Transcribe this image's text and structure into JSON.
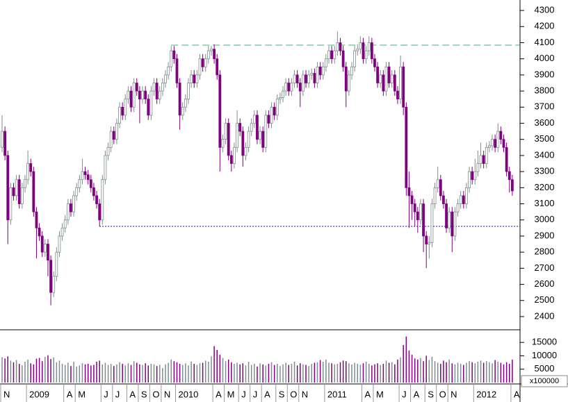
{
  "chart_data": {
    "type": "candlestick",
    "ohlc": [
      [
        3450,
        3650,
        3420,
        3550
      ],
      [
        3550,
        3580,
        3370,
        3400
      ],
      [
        3400,
        3430,
        2850,
        3000
      ],
      [
        3000,
        3230,
        2970,
        3200
      ],
      [
        3200,
        3230,
        3120,
        3150
      ],
      [
        3150,
        3280,
        3120,
        3250
      ],
      [
        3250,
        3280,
        3070,
        3100
      ],
      [
        3100,
        3230,
        3070,
        3200
      ],
      [
        3200,
        3280,
        3170,
        3250
      ],
      [
        3250,
        3430,
        3220,
        3350
      ],
      [
        3350,
        3380,
        3270,
        3300
      ],
      [
        3300,
        3330,
        3020,
        3050
      ],
      [
        3050,
        3080,
        2760,
        2950
      ],
      [
        2950,
        2980,
        2870,
        2900
      ],
      [
        2900,
        2930,
        2770,
        2800
      ],
      [
        2800,
        2880,
        2770,
        2850
      ],
      [
        2850,
        2880,
        2650,
        2750
      ],
      [
        2750,
        2780,
        2470,
        2550
      ],
      [
        2550,
        2680,
        2520,
        2650
      ],
      [
        2650,
        2830,
        2620,
        2800
      ],
      [
        2800,
        2930,
        2770,
        2900
      ],
      [
        2900,
        2980,
        2870,
        2950
      ],
      [
        2950,
        3030,
        2920,
        3000
      ],
      [
        3000,
        3130,
        2970,
        3100
      ],
      [
        3100,
        3130,
        3020,
        3050
      ],
      [
        3050,
        3180,
        3020,
        3150
      ],
      [
        3150,
        3230,
        3120,
        3200
      ],
      [
        3200,
        3280,
        3170,
        3250
      ],
      [
        3250,
        3380,
        3220,
        3300
      ],
      [
        3300,
        3330,
        3250,
        3280
      ],
      [
        3280,
        3310,
        3220,
        3250
      ],
      [
        3250,
        3280,
        3170,
        3200
      ],
      [
        3200,
        3230,
        3120,
        3150
      ],
      [
        3150,
        3180,
        3070,
        3100
      ],
      [
        3100,
        3130,
        2960,
        3000
      ],
      [
        3000,
        3280,
        2970,
        3250
      ],
      [
        3250,
        3430,
        3220,
        3400
      ],
      [
        3400,
        3480,
        3370,
        3450
      ],
      [
        3450,
        3580,
        3420,
        3550
      ],
      [
        3550,
        3580,
        3470,
        3500
      ],
      [
        3500,
        3630,
        3470,
        3600
      ],
      [
        3600,
        3730,
        3570,
        3700
      ],
      [
        3700,
        3730,
        3620,
        3650
      ],
      [
        3650,
        3780,
        3620,
        3750
      ],
      [
        3750,
        3830,
        3720,
        3800
      ],
      [
        3800,
        3830,
        3670,
        3700
      ],
      [
        3700,
        3880,
        3670,
        3850
      ],
      [
        3850,
        3880,
        3770,
        3800
      ],
      [
        3800,
        3830,
        3600,
        3750
      ],
      [
        3750,
        3830,
        3720,
        3800
      ],
      [
        3800,
        3830,
        3720,
        3750
      ],
      [
        3750,
        3780,
        3620,
        3650
      ],
      [
        3650,
        3830,
        3620,
        3800
      ],
      [
        3800,
        3880,
        3770,
        3850
      ],
      [
        3850,
        3880,
        3720,
        3750
      ],
      [
        3750,
        3830,
        3720,
        3800
      ],
      [
        3800,
        3880,
        3770,
        3850
      ],
      [
        3850,
        3930,
        3820,
        3900
      ],
      [
        3900,
        3980,
        3870,
        3950
      ],
      [
        3950,
        4080,
        3920,
        4050
      ],
      [
        4050,
        4080,
        3970,
        4000
      ],
      [
        4000,
        4030,
        3820,
        3850
      ],
      [
        3850,
        3880,
        3560,
        3650
      ],
      [
        3650,
        3730,
        3620,
        3700
      ],
      [
        3700,
        3780,
        3670,
        3750
      ],
      [
        3750,
        3880,
        3720,
        3850
      ],
      [
        3850,
        3930,
        3820,
        3900
      ],
      [
        3900,
        3930,
        3820,
        3850
      ],
      [
        3850,
        3930,
        3820,
        3900
      ],
      [
        3900,
        4030,
        3870,
        4000
      ],
      [
        4000,
        4030,
        3920,
        3950
      ],
      [
        3950,
        4030,
        3920,
        4000
      ],
      [
        4000,
        4080,
        3970,
        4050
      ],
      [
        4050,
        4080,
        4020,
        4060
      ],
      [
        4060,
        4090,
        3970,
        4000
      ],
      [
        4000,
        4030,
        3870,
        3900
      ],
      [
        3900,
        3930,
        3300,
        3450
      ],
      [
        3450,
        3530,
        3420,
        3500
      ],
      [
        3500,
        3630,
        3470,
        3600
      ],
      [
        3600,
        3630,
        3370,
        3400
      ],
      [
        3400,
        3430,
        3300,
        3350
      ],
      [
        3350,
        3480,
        3320,
        3450
      ],
      [
        3450,
        3680,
        3420,
        3600
      ],
      [
        3600,
        3630,
        3520,
        3550
      ],
      [
        3550,
        3580,
        3330,
        3400
      ],
      [
        3400,
        3480,
        3370,
        3450
      ],
      [
        3450,
        3580,
        3420,
        3550
      ],
      [
        3550,
        3630,
        3520,
        3600
      ],
      [
        3600,
        3680,
        3570,
        3650
      ],
      [
        3650,
        3680,
        3470,
        3500
      ],
      [
        3500,
        3580,
        3470,
        3550
      ],
      [
        3550,
        3580,
        3420,
        3450
      ],
      [
        3450,
        3680,
        3420,
        3650
      ],
      [
        3650,
        3680,
        3570,
        3600
      ],
      [
        3600,
        3730,
        3570,
        3700
      ],
      [
        3700,
        3730,
        3620,
        3650
      ],
      [
        3650,
        3780,
        3620,
        3750
      ],
      [
        3750,
        3790,
        3720,
        3760
      ],
      [
        3760,
        3830,
        3730,
        3800
      ],
      [
        3800,
        3880,
        3770,
        3850
      ],
      [
        3850,
        3880,
        3770,
        3800
      ],
      [
        3800,
        3880,
        3770,
        3850
      ],
      [
        3850,
        3930,
        3820,
        3900
      ],
      [
        3900,
        3930,
        3820,
        3850
      ],
      [
        3850,
        3880,
        3700,
        3800
      ],
      [
        3800,
        3930,
        3770,
        3900
      ],
      [
        3900,
        3930,
        3820,
        3850
      ],
      [
        3850,
        3930,
        3820,
        3900
      ],
      [
        3900,
        3940,
        3870,
        3910
      ],
      [
        3910,
        3940,
        3820,
        3850
      ],
      [
        3850,
        3980,
        3820,
        3950
      ],
      [
        3950,
        3980,
        3870,
        3900
      ],
      [
        3900,
        3980,
        3870,
        3950
      ],
      [
        3950,
        4030,
        3920,
        4000
      ],
      [
        4000,
        4080,
        3970,
        4050
      ],
      [
        4050,
        4080,
        3970,
        4000
      ],
      [
        4000,
        4080,
        3970,
        4050
      ],
      [
        4050,
        4170,
        4020,
        4100
      ],
      [
        4100,
        4130,
        4020,
        4050
      ],
      [
        4050,
        4080,
        3920,
        3950
      ],
      [
        3950,
        3980,
        3700,
        3800
      ],
      [
        3800,
        3930,
        3770,
        3900
      ],
      [
        3900,
        3980,
        3870,
        3950
      ],
      [
        3950,
        4080,
        3920,
        4050
      ],
      [
        4050,
        4090,
        4020,
        4060
      ],
      [
        4060,
        4140,
        4030,
        4100
      ],
      [
        4100,
        4130,
        3970,
        4000
      ],
      [
        4000,
        4080,
        3970,
        4050
      ],
      [
        4050,
        4140,
        4020,
        4100
      ],
      [
        4100,
        4130,
        3970,
        4000
      ],
      [
        4000,
        4030,
        3920,
        3950
      ],
      [
        3950,
        3980,
        3820,
        3850
      ],
      [
        3850,
        3930,
        3820,
        3900
      ],
      [
        3900,
        3930,
        3770,
        3800
      ],
      [
        3800,
        3980,
        3770,
        3950
      ],
      [
        3950,
        3980,
        3820,
        3850
      ],
      [
        3850,
        3930,
        3820,
        3900
      ],
      [
        3900,
        3930,
        3770,
        3800
      ],
      [
        3800,
        3830,
        3720,
        3750
      ],
      [
        3750,
        4020,
        3720,
        3950
      ],
      [
        3950,
        3980,
        3650,
        3700
      ],
      [
        3700,
        3730,
        3150,
        3200
      ],
      [
        3200,
        3300,
        2950,
        3150
      ],
      [
        3150,
        3180,
        3000,
        3100
      ],
      [
        3100,
        3130,
        2960,
        3050
      ],
      [
        3050,
        3080,
        2920,
        3000
      ],
      [
        3000,
        3130,
        2970,
        3100
      ],
      [
        3100,
        3130,
        2800,
        2900
      ],
      [
        2900,
        2930,
        2700,
        2850
      ],
      [
        2850,
        2900,
        2760,
        2860
      ],
      [
        2860,
        3130,
        2830,
        3100
      ],
      [
        3100,
        3230,
        3070,
        3200
      ],
      [
        3200,
        3330,
        3170,
        3250
      ],
      [
        3250,
        3280,
        3120,
        3150
      ],
      [
        3150,
        3180,
        3070,
        3100
      ],
      [
        3100,
        3130,
        2920,
        2950
      ],
      [
        2950,
        3080,
        2920,
        3050
      ],
      [
        3050,
        3080,
        2800,
        2900
      ],
      [
        2900,
        3080,
        2870,
        3050
      ],
      [
        3050,
        3130,
        3020,
        3100
      ],
      [
        3100,
        3180,
        3070,
        3150
      ],
      [
        3150,
        3180,
        3070,
        3100
      ],
      [
        3100,
        3230,
        3070,
        3200
      ],
      [
        3200,
        3330,
        3170,
        3300
      ],
      [
        3300,
        3330,
        3220,
        3250
      ],
      [
        3250,
        3380,
        3220,
        3300
      ],
      [
        3300,
        3430,
        3270,
        3350
      ],
      [
        3350,
        3480,
        3320,
        3400
      ],
      [
        3400,
        3430,
        3320,
        3350
      ],
      [
        3350,
        3480,
        3320,
        3450
      ],
      [
        3450,
        3490,
        3420,
        3460
      ],
      [
        3460,
        3530,
        3430,
        3500
      ],
      [
        3500,
        3530,
        3420,
        3450
      ],
      [
        3450,
        3600,
        3420,
        3550
      ],
      [
        3550,
        3580,
        3470,
        3500
      ],
      [
        3500,
        3530,
        3420,
        3450
      ],
      [
        3450,
        3480,
        3270,
        3300
      ],
      [
        3300,
        3330,
        3170,
        3250
      ],
      [
        3250,
        3280,
        3150,
        3180
      ]
    ],
    "volume": [
      9500,
      9000,
      9800,
      8200,
      7600,
      8400,
      7000,
      6500,
      7800,
      8600,
      7200,
      6800,
      8900,
      9200,
      8000,
      9600,
      10200,
      8800,
      9400,
      7600,
      8200,
      7000,
      6600,
      7400,
      6200,
      7800,
      6000,
      6400,
      7200,
      6800,
      7000,
      6400,
      6600,
      7800,
      8200,
      6800,
      7400,
      6600,
      7000,
      6200,
      6800,
      7600,
      7000,
      6400,
      7200,
      6600,
      8000,
      7400,
      6800,
      6600,
      7200,
      6400,
      7000,
      6800,
      6200,
      6600,
      5400,
      6800,
      7400,
      8600,
      8000,
      7600,
      7000,
      6600,
      7200,
      6400,
      7800,
      7000,
      6600,
      7200,
      7400,
      8200,
      7800,
      9800,
      13600,
      12200,
      10400,
      9200,
      8000,
      8600,
      7600,
      7000,
      7400,
      6800,
      7200,
      6400,
      7800,
      6600,
      7000,
      6000,
      7200,
      6800,
      6400,
      7000,
      7600,
      6600,
      7000,
      6200,
      6800,
      7400,
      6600,
      7000,
      7800,
      6400,
      7200,
      6800,
      6600,
      6200,
      7000,
      7400,
      7600,
      8400,
      7800,
      8600,
      7400,
      7200,
      6800,
      7000,
      7600,
      8200,
      8000,
      7200,
      6800,
      7400,
      7000,
      6600,
      7200,
      7800,
      7000,
      6400,
      6800,
      7200,
      6600,
      7000,
      8200,
      7400,
      7600,
      6800,
      8600,
      9400,
      14000,
      17200,
      12000,
      10400,
      9000,
      8600,
      9200,
      8000,
      10000,
      8400,
      9600,
      8000,
      7400,
      7000,
      8200,
      7600,
      8600,
      7200,
      6800,
      7400,
      7000,
      6600,
      7400,
      8000,
      7600,
      7200,
      7800,
      8200,
      7400,
      8000,
      7600,
      7200,
      8400,
      7800,
      7400,
      6800,
      7600,
      7000,
      8600
    ],
    "up_color": "#ffffff",
    "up_edge": "#7f8c8d",
    "down_color": "#800080",
    "ylim": [
      2318,
      4365
    ],
    "yticks": [
      2400,
      2500,
      2600,
      2700,
      2800,
      2900,
      3000,
      3100,
      3200,
      3300,
      3400,
      3500,
      3600,
      3700,
      3800,
      3900,
      4000,
      4100,
      4200,
      4300
    ],
    "volume_ylim": [
      0,
      19200
    ],
    "volume_yticks": [
      5000,
      10000,
      15000
    ],
    "volume_unit": "x100000",
    "x_labels": [
      {
        "index": 0,
        "label": "N"
      },
      {
        "index": 9,
        "label": "2009"
      },
      {
        "index": 22,
        "label": "A"
      },
      {
        "index": 26,
        "label": "M"
      },
      {
        "index": 35,
        "label": "J"
      },
      {
        "index": 39,
        "label": "J"
      },
      {
        "index": 44,
        "label": "A"
      },
      {
        "index": 48,
        "label": "S"
      },
      {
        "index": 52,
        "label": "O"
      },
      {
        "index": 56,
        "label": "N"
      },
      {
        "index": 61,
        "label": "2010"
      },
      {
        "index": 74,
        "label": "A"
      },
      {
        "index": 78,
        "label": "M"
      },
      {
        "index": 83,
        "label": "J"
      },
      {
        "index": 87,
        "label": "J"
      },
      {
        "index": 91,
        "label": "A"
      },
      {
        "index": 96,
        "label": "S"
      },
      {
        "index": 100,
        "label": "O"
      },
      {
        "index": 104,
        "label": "N"
      },
      {
        "index": 113,
        "label": "2011"
      },
      {
        "index": 126,
        "label": "A"
      },
      {
        "index": 130,
        "label": "M"
      },
      {
        "index": 139,
        "label": "J"
      },
      {
        "index": 143,
        "label": "A"
      },
      {
        "index": 148,
        "label": "S"
      },
      {
        "index": 152,
        "label": "O"
      },
      {
        "index": 156,
        "label": "N"
      },
      {
        "index": 165,
        "label": "2012"
      },
      {
        "index": 178,
        "label": "A"
      }
    ],
    "hlines": [
      {
        "value": 4085,
        "from": 59,
        "color": "#3cb371",
        "dash": "10 5"
      },
      {
        "value": 2960,
        "from": 34,
        "color": "#0000cc",
        "dash": "2 2"
      }
    ]
  }
}
